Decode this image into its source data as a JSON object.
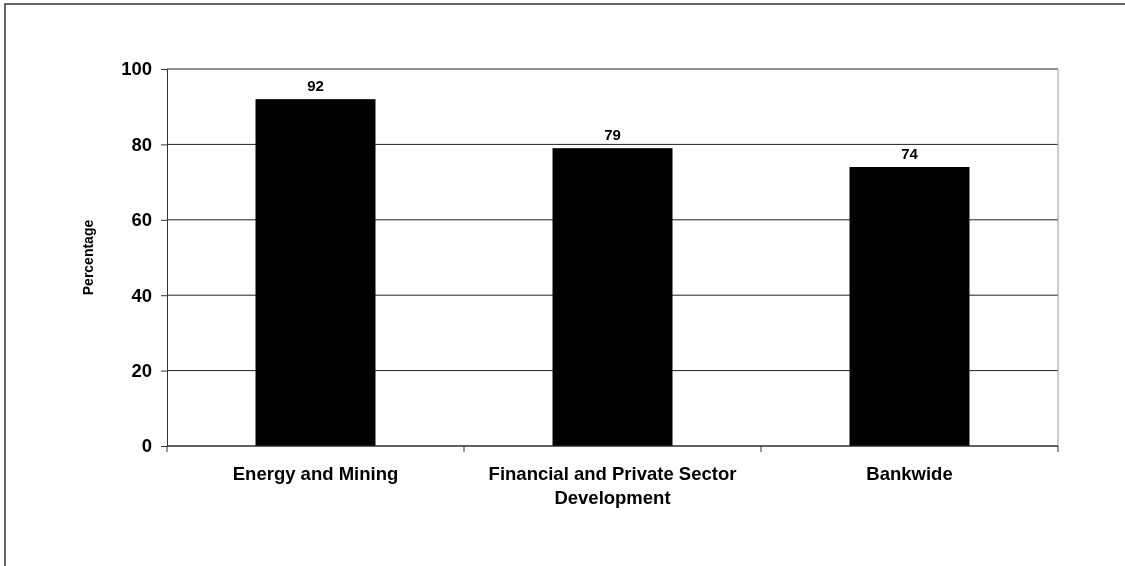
{
  "chart_data": {
    "type": "bar",
    "ylabel": "Percentage",
    "categories": [
      "Energy and Mining",
      "Financial and Private Sector Development",
      "Bankwide"
    ],
    "values": [
      92,
      79,
      74
    ],
    "color": "#000000",
    "ylim": [
      0,
      100
    ],
    "yticks": [
      0,
      20,
      40,
      60,
      80,
      100
    ],
    "grid": "y",
    "data_labels": true
  }
}
